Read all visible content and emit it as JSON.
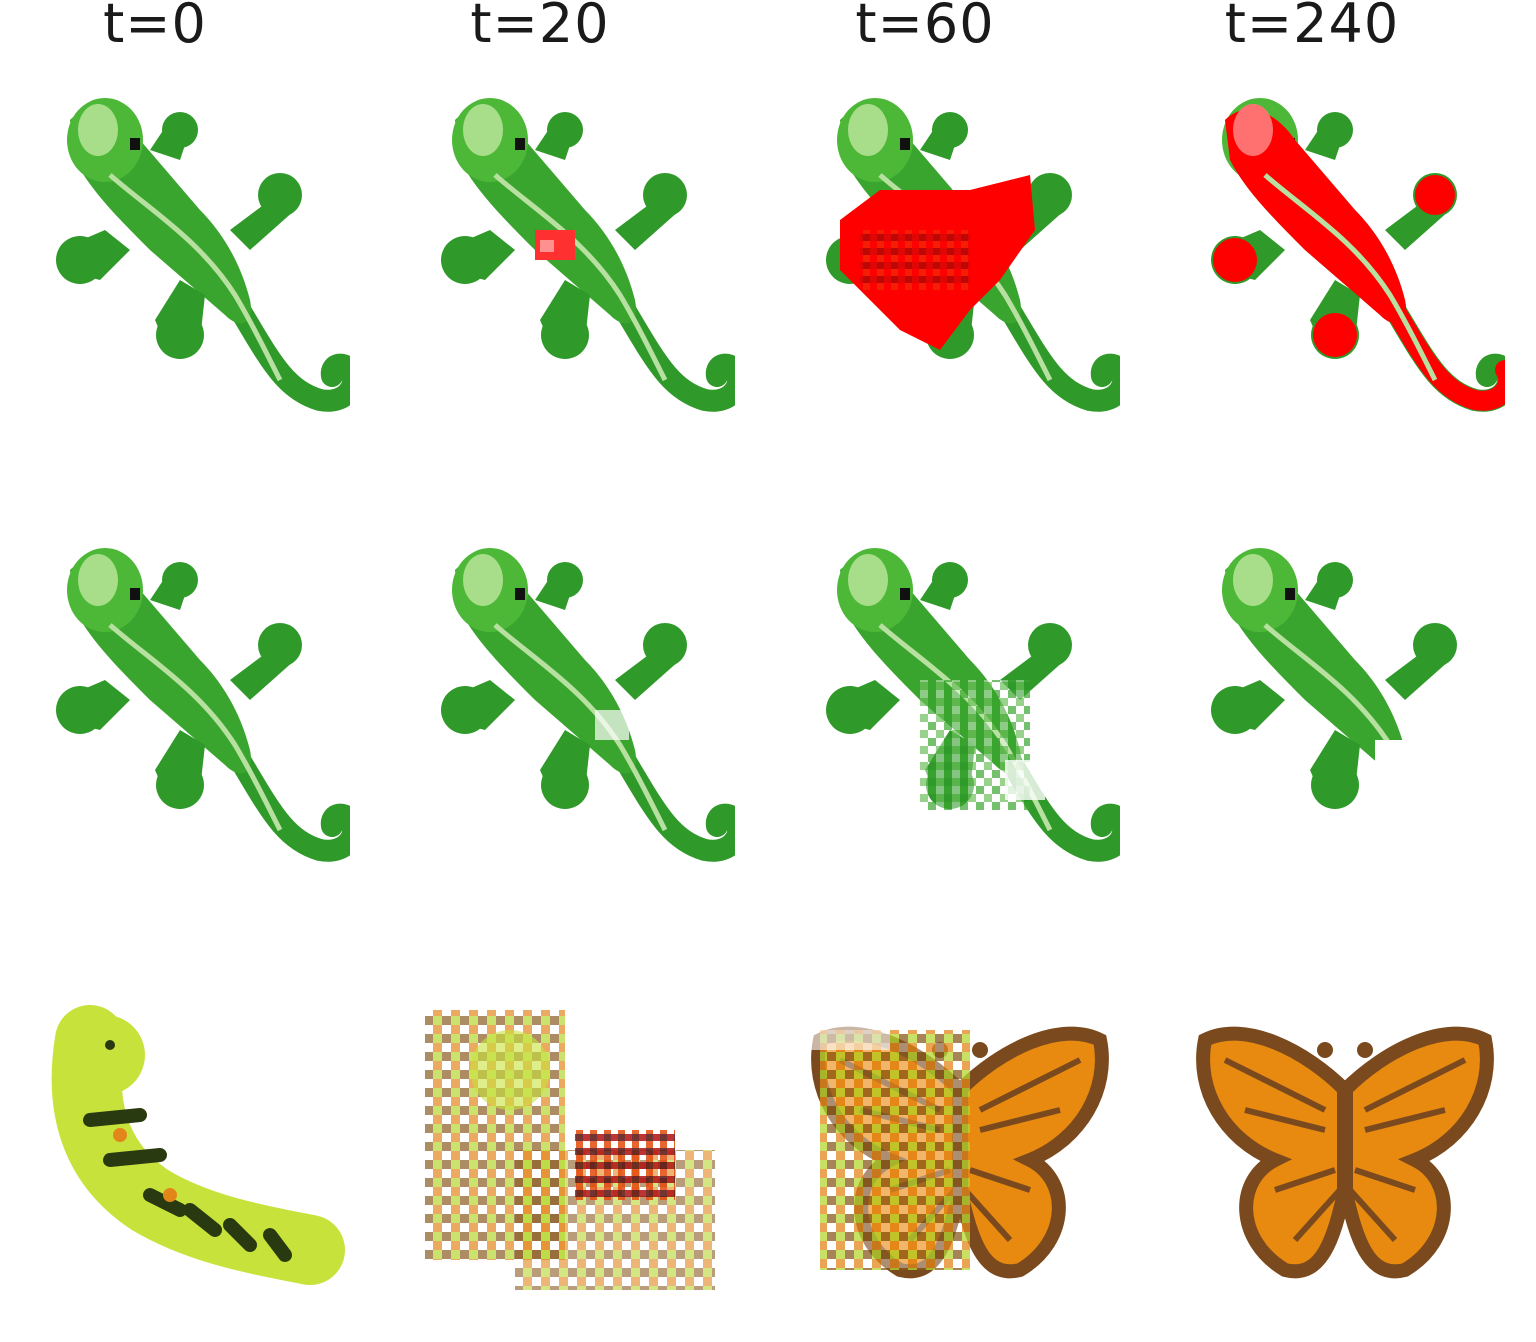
{
  "columns": [
    {
      "label": "t=0"
    },
    {
      "label": "t=20"
    },
    {
      "label": "t=60"
    },
    {
      "label": "t=240"
    }
  ],
  "rows": [
    {
      "cells": [
        "lizard-intact",
        "lizard-small-damage",
        "lizard-red-spread",
        "lizard-fully-red"
      ]
    },
    {
      "cells": [
        "lizard-intact",
        "lizard-small-damage",
        "lizard-tail-damaged",
        "lizard-tail-missing"
      ]
    },
    {
      "cells": [
        "caterpillar",
        "caterpillar-noisy",
        "butterfly-forming",
        "butterfly"
      ]
    }
  ],
  "colors": {
    "lizard_green": "#2f9a2a",
    "lizard_light": "#55c23c",
    "lizard_stripe": "#b8e0a0",
    "red": "#ff0000",
    "caterpillar": "#c8e23c",
    "butterfly_orange": "#e88a10",
    "butterfly_brown": "#7a4a1e"
  }
}
